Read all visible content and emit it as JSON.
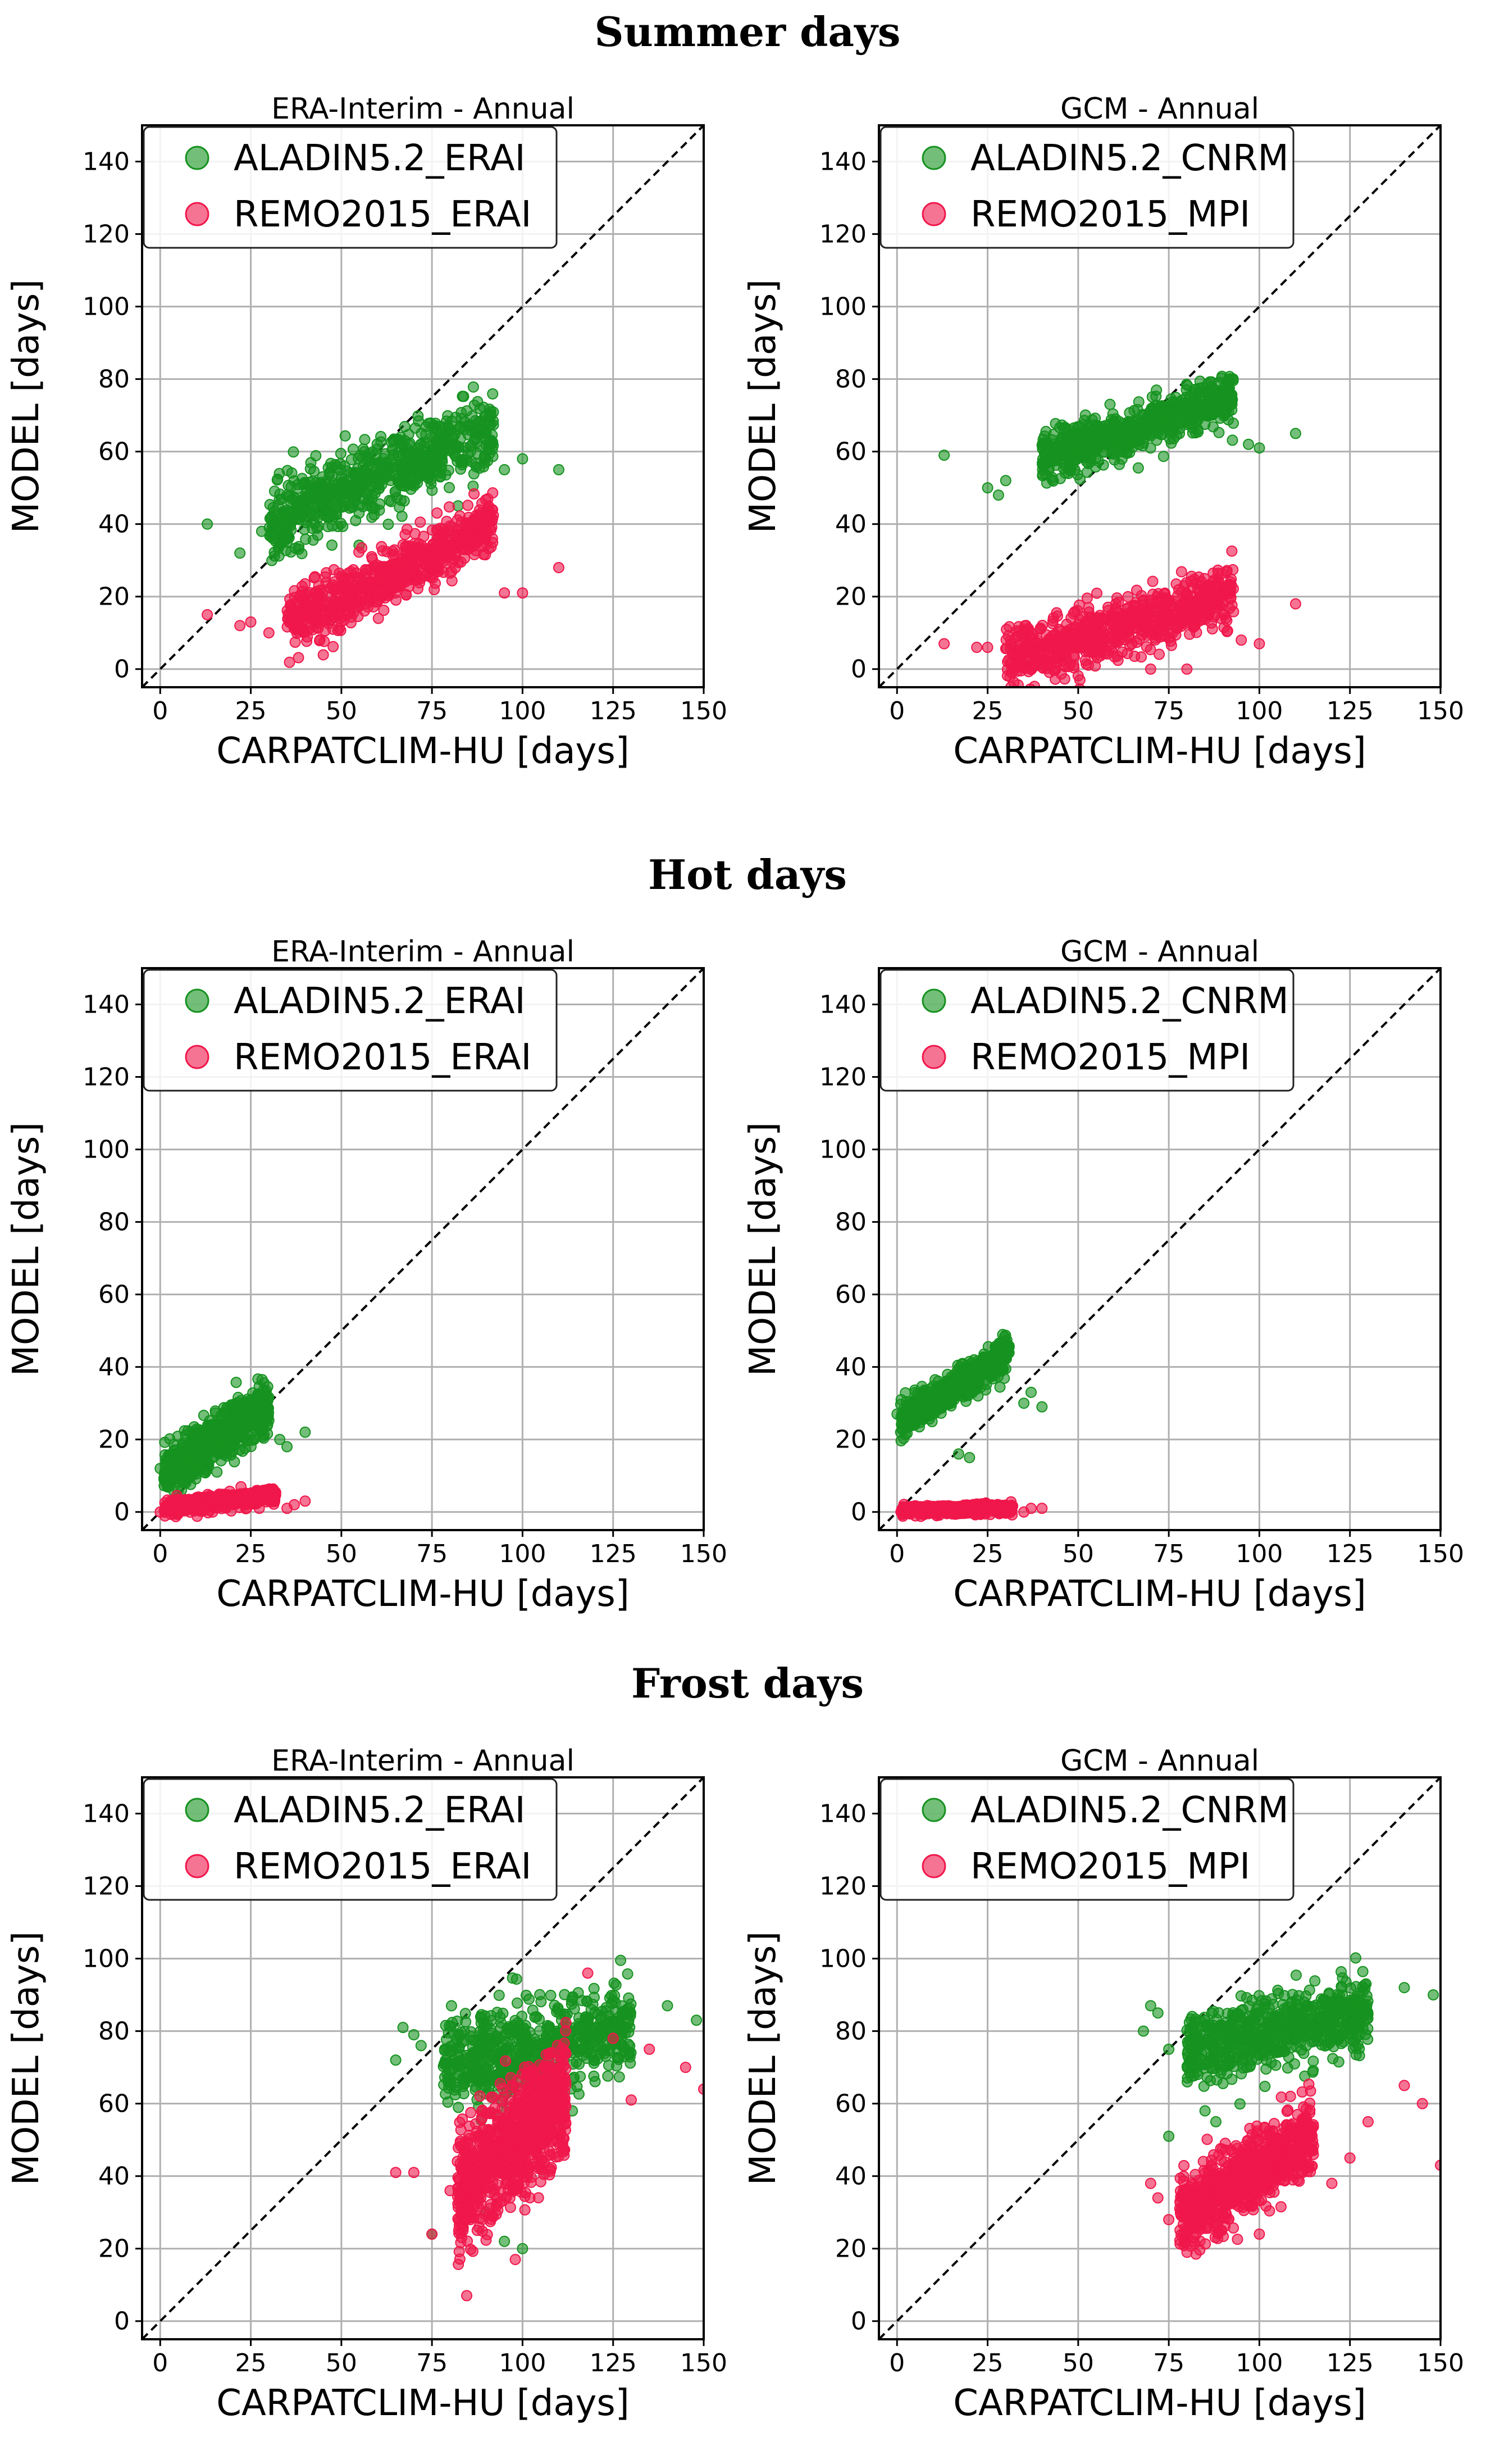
{
  "sections": [
    {
      "title": "Summer days"
    },
    {
      "title": "Hot days"
    },
    {
      "title": "Frost days"
    }
  ],
  "colors": {
    "green": "#15921f",
    "red": "#f0174b",
    "grid": "#b0b0b0",
    "diagonal": "#000000"
  },
  "chart_data": [
    {
      "id": "summer-erai",
      "section": 0,
      "column": 0,
      "type": "scatter",
      "title": "ERA-Interim - Annual",
      "xlabel": "CARPATCLIM-HU [days]",
      "ylabel": "MODEL [days]",
      "xlim": [
        -5,
        150
      ],
      "ylim": [
        -5,
        150
      ],
      "xticks": [
        0,
        25,
        50,
        75,
        100,
        125,
        150
      ],
      "yticks": [
        0,
        20,
        40,
        60,
        80,
        100,
        120,
        140
      ],
      "grid": true,
      "diagonal": "1:1 dashed",
      "legend": "upper-left",
      "series": [
        {
          "name": "ALADIN5.2_ERAI",
          "color": "green",
          "cluster": {
            "x_range": [
              30,
              92
            ],
            "slope": 0.42,
            "intercept": 28,
            "spread": 5,
            "n": 700
          },
          "points": [
            [
              13,
              40
            ],
            [
              22,
              32
            ],
            [
              28,
              38
            ],
            [
              110,
              55
            ],
            [
              100,
              58
            ],
            [
              95,
              55
            ],
            [
              40,
              44
            ],
            [
              35,
              35
            ]
          ]
        },
        {
          "name": "REMO2015_ERAI",
          "color": "red",
          "cluster": {
            "x_range": [
              35,
              92
            ],
            "slope": 0.47,
            "intercept": -4,
            "spread": 4,
            "n": 700
          },
          "points": [
            [
              13,
              15
            ],
            [
              22,
              12
            ],
            [
              25,
              13
            ],
            [
              110,
              28
            ],
            [
              100,
              21
            ],
            [
              95,
              21
            ],
            [
              30,
              10
            ]
          ]
        }
      ]
    },
    {
      "id": "summer-gcm",
      "section": 0,
      "column": 1,
      "type": "scatter",
      "title": "GCM - Annual",
      "xlabel": "CARPATCLIM-HU [days]",
      "ylabel": "MODEL [days]",
      "xlim": [
        -5,
        150
      ],
      "ylim": [
        -5,
        150
      ],
      "xticks": [
        0,
        25,
        50,
        75,
        100,
        125,
        150
      ],
      "yticks": [
        0,
        20,
        40,
        60,
        80,
        100,
        120,
        140
      ],
      "grid": true,
      "diagonal": "1:1 dashed",
      "legend": "upper-left",
      "series": [
        {
          "name": "ALADIN5.2_CNRM",
          "color": "green",
          "cluster": {
            "x_range": [
              40,
              93
            ],
            "slope": 0.33,
            "intercept": 45,
            "spread": 3.5,
            "n": 650
          },
          "points": [
            [
              13,
              59
            ],
            [
              25,
              50
            ],
            [
              28,
              48
            ],
            [
              30,
              52
            ],
            [
              110,
              65
            ],
            [
              97,
              62
            ],
            [
              100,
              61
            ]
          ]
        },
        {
          "name": "REMO2015_MPI",
          "color": "red",
          "cluster": {
            "x_range": [
              30,
              93
            ],
            "slope": 0.3,
            "intercept": -7,
            "spread": 4,
            "n": 700
          },
          "points": [
            [
              13,
              7
            ],
            [
              22,
              6
            ],
            [
              25,
              6
            ],
            [
              110,
              18
            ],
            [
              100,
              7
            ],
            [
              95,
              8
            ],
            [
              70,
              0
            ],
            [
              80,
              0
            ]
          ]
        }
      ]
    },
    {
      "id": "hot-erai",
      "section": 1,
      "column": 0,
      "type": "scatter",
      "title": "ERA-Interim - Annual",
      "xlabel": "CARPATCLIM-HU [days]",
      "ylabel": "MODEL [days]",
      "xlim": [
        -5,
        150
      ],
      "ylim": [
        -5,
        150
      ],
      "xticks": [
        0,
        25,
        50,
        75,
        100,
        125,
        150
      ],
      "yticks": [
        0,
        20,
        40,
        60,
        80,
        100,
        120,
        140
      ],
      "grid": true,
      "diagonal": "1:1 dashed",
      "legend": "upper-left",
      "series": [
        {
          "name": "ALADIN5.2_ERAI",
          "color": "green",
          "cluster": {
            "x_range": [
              1,
              30
            ],
            "slope": 0.65,
            "intercept": 10,
            "spread": 3.5,
            "n": 650
          },
          "points": [
            [
              0,
              12
            ],
            [
              40,
              22
            ],
            [
              35,
              18
            ],
            [
              2,
              7
            ],
            [
              33,
              20
            ]
          ]
        },
        {
          "name": "REMO2015_ERAI",
          "color": "red",
          "cluster": {
            "x_range": [
              1,
              32
            ],
            "slope": 0.12,
            "intercept": 1,
            "spread": 1,
            "n": 650
          },
          "points": [
            [
              40,
              3
            ],
            [
              37,
              2
            ],
            [
              35,
              1
            ],
            [
              0,
              0
            ]
          ]
        }
      ]
    },
    {
      "id": "hot-gcm",
      "section": 1,
      "column": 1,
      "type": "scatter",
      "title": "GCM - Annual",
      "xlabel": "CARPATCLIM-HU [days]",
      "ylabel": "MODEL [days]",
      "xlim": [
        -5,
        150
      ],
      "ylim": [
        -5,
        150
      ],
      "xticks": [
        0,
        25,
        50,
        75,
        100,
        125,
        150
      ],
      "yticks": [
        0,
        20,
        40,
        60,
        80,
        100,
        120,
        140
      ],
      "grid": true,
      "diagonal": "1:1 dashed",
      "legend": "upper-left",
      "series": [
        {
          "name": "ALADIN5.2_CNRM",
          "color": "green",
          "cluster": {
            "x_range": [
              1,
              31
            ],
            "slope": 0.6,
            "intercept": 25,
            "spread": 2.5,
            "n": 600
          },
          "points": [
            [
              37,
              33
            ],
            [
              35,
              30
            ],
            [
              40,
              29
            ],
            [
              17,
              16
            ],
            [
              20,
              15
            ],
            [
              0,
              27
            ],
            [
              1,
              22
            ]
          ]
        },
        {
          "name": "REMO2015_MPI",
          "color": "red",
          "cluster": {
            "x_range": [
              1,
              32
            ],
            "slope": 0.02,
            "intercept": 0.3,
            "spread": 0.6,
            "n": 600
          },
          "points": [
            [
              40,
              1
            ],
            [
              37,
              1
            ],
            [
              35,
              0
            ]
          ]
        }
      ]
    },
    {
      "id": "frost-erai",
      "section": 2,
      "column": 0,
      "type": "scatter",
      "title": "ERA-Interim - Annual",
      "xlabel": "CARPATCLIM-HU [days]",
      "ylabel": "MODEL [days]",
      "xlim": [
        -5,
        150
      ],
      "ylim": [
        -5,
        150
      ],
      "xticks": [
        0,
        25,
        50,
        75,
        100,
        125,
        150
      ],
      "yticks": [
        0,
        20,
        40,
        60,
        80,
        100,
        120,
        140
      ],
      "grid": true,
      "diagonal": "1:1 dashed",
      "legend": "upper-left",
      "series": [
        {
          "name": "ALADIN5.2_ERAI",
          "color": "green",
          "cluster": {
            "x_range": [
              78,
              130
            ],
            "slope": 0.22,
            "intercept": 53,
            "spread": 6,
            "n": 650
          },
          "points": [
            [
              67,
              81
            ],
            [
              70,
              79
            ],
            [
              72,
              76
            ],
            [
              65,
              72
            ],
            [
              148,
              83
            ],
            [
              140,
              87
            ],
            [
              95,
              22
            ],
            [
              100,
              20
            ],
            [
              75,
              24
            ],
            [
              90,
              30
            ]
          ]
        },
        {
          "name": "REMO2015_ERAI",
          "color": "red",
          "cluster": {
            "x_range": [
              82,
              112
            ],
            "slope": 0.9,
            "intercept": -39,
            "spread": 8,
            "n": 900
          },
          "points": [
            [
              65,
              41
            ],
            [
              70,
              41
            ],
            [
              80,
              36
            ],
            [
              75,
              24
            ],
            [
              98,
              17
            ],
            [
              118,
              96
            ],
            [
              125,
              78
            ],
            [
              135,
              75
            ],
            [
              145,
              70
            ],
            [
              150,
              64
            ],
            [
              130,
              61
            ]
          ]
        }
      ]
    },
    {
      "id": "frost-gcm",
      "section": 2,
      "column": 1,
      "type": "scatter",
      "title": "GCM - Annual",
      "xlabel": "CARPATCLIM-HU [days]",
      "ylabel": "MODEL [days]",
      "xlim": [
        -5,
        150
      ],
      "ylim": [
        -5,
        150
      ],
      "xticks": [
        0,
        25,
        50,
        75,
        100,
        125,
        150
      ],
      "yticks": [
        0,
        20,
        40,
        60,
        80,
        100,
        120,
        140
      ],
      "grid": true,
      "diagonal": "1:1 dashed",
      "legend": "upper-left",
      "series": [
        {
          "name": "ALADIN5.2_CNRM",
          "color": "green",
          "cluster": {
            "x_range": [
              80,
              130
            ],
            "slope": 0.2,
            "intercept": 59,
            "spread": 5,
            "n": 650
          },
          "points": [
            [
              70,
              87
            ],
            [
              72,
              85
            ],
            [
              68,
              80
            ],
            [
              75,
              75
            ],
            [
              148,
              90
            ],
            [
              140,
              92
            ],
            [
              88,
              55
            ],
            [
              85,
              58
            ],
            [
              75,
              51
            ]
          ]
        },
        {
          "name": "REMO2015_MPI",
          "color": "red",
          "cluster": {
            "x_range": [
              78,
              115
            ],
            "slope": 0.6,
            "intercept": -18,
            "spread": 5,
            "n": 850
          },
          "points": [
            [
              70,
              38
            ],
            [
              72,
              34
            ],
            [
              75,
              28
            ],
            [
              150,
              43
            ],
            [
              145,
              60
            ],
            [
              140,
              65
            ],
            [
              130,
              55
            ],
            [
              125,
              45
            ],
            [
              120,
              38
            ],
            [
              100,
              24
            ]
          ]
        }
      ]
    }
  ]
}
